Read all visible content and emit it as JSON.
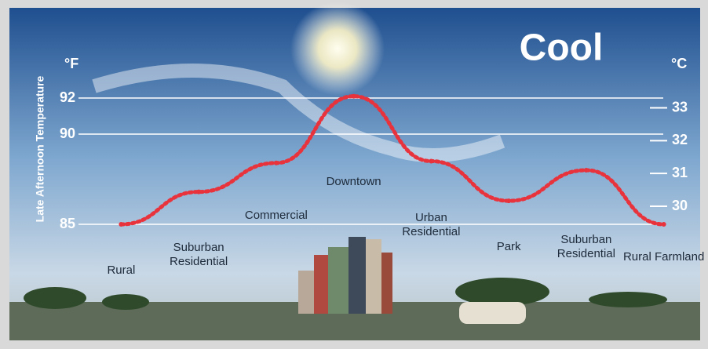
{
  "chart_data": {
    "type": "line",
    "title": "Cool",
    "ylabel": "Late Afternoon Temperature",
    "yunit": "°F",
    "y2unit": "°C",
    "categories": [
      "Rural",
      "Suburban Residential",
      "Commercial",
      "Downtown",
      "Urban Residential",
      "Park",
      "Suburban Residential",
      "Rural Farmland"
    ],
    "values": [
      85,
      86.8,
      88.4,
      92.1,
      88.5,
      86.3,
      88.0,
      85
    ],
    "color": "#e8323c",
    "ylim": [
      80,
      94
    ],
    "yticks": [
      85,
      90,
      92
    ],
    "y2lim": [
      26.7,
      34.4
    ],
    "y2ticks": [
      30,
      31,
      32,
      33
    ],
    "grid": true
  }
}
